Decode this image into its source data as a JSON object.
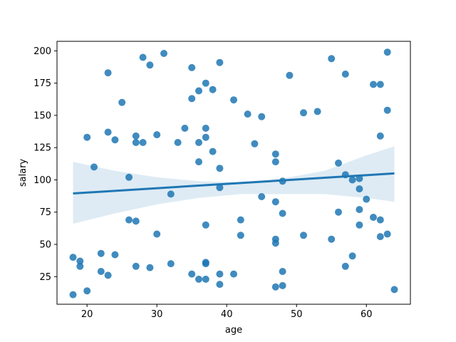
{
  "chart_data": {
    "type": "scatter",
    "xlabel": "age",
    "ylabel": "salary",
    "xlim": [
      15.7,
      66.3
    ],
    "ylim": [
      3.6,
      207.4
    ],
    "x_ticks": [
      20,
      30,
      40,
      50,
      60
    ],
    "y_ticks": [
      25,
      50,
      75,
      100,
      125,
      150,
      175,
      200
    ],
    "grid": false,
    "colors": {
      "points": "#1f77b4",
      "line": "#1f77b4",
      "band": "#1f77b4"
    },
    "regression": {
      "x": [
        18,
        64
      ],
      "y": [
        89.5,
        105
      ],
      "ci_upper": [
        {
          "x": 18,
          "y": 114
        },
        {
          "x": 24,
          "y": 107
        },
        {
          "x": 30,
          "y": 102
        },
        {
          "x": 36,
          "y": 99
        },
        {
          "x": 42,
          "y": 98
        },
        {
          "x": 48,
          "y": 101
        },
        {
          "x": 54,
          "y": 107
        },
        {
          "x": 60,
          "y": 119
        },
        {
          "x": 64,
          "y": 126
        }
      ],
      "ci_lower": [
        {
          "x": 64,
          "y": 83
        },
        {
          "x": 60,
          "y": 86
        },
        {
          "x": 54,
          "y": 89
        },
        {
          "x": 48,
          "y": 89
        },
        {
          "x": 42,
          "y": 89
        },
        {
          "x": 36,
          "y": 86
        },
        {
          "x": 30,
          "y": 81
        },
        {
          "x": 24,
          "y": 74
        },
        {
          "x": 18,
          "y": 66
        }
      ]
    },
    "points": [
      {
        "x": 18,
        "y": 40
      },
      {
        "x": 18,
        "y": 11
      },
      {
        "x": 19,
        "y": 37
      },
      {
        "x": 19,
        "y": 33
      },
      {
        "x": 20,
        "y": 133
      },
      {
        "x": 20,
        "y": 14
      },
      {
        "x": 21,
        "y": 110
      },
      {
        "x": 22,
        "y": 43
      },
      {
        "x": 22,
        "y": 29
      },
      {
        "x": 23,
        "y": 183
      },
      {
        "x": 23,
        "y": 137
      },
      {
        "x": 23,
        "y": 26
      },
      {
        "x": 24,
        "y": 131
      },
      {
        "x": 24,
        "y": 42
      },
      {
        "x": 25,
        "y": 160
      },
      {
        "x": 26,
        "y": 102
      },
      {
        "x": 26,
        "y": 69
      },
      {
        "x": 27,
        "y": 134
      },
      {
        "x": 27,
        "y": 129
      },
      {
        "x": 27,
        "y": 68
      },
      {
        "x": 27,
        "y": 33
      },
      {
        "x": 28,
        "y": 195
      },
      {
        "x": 28,
        "y": 129
      },
      {
        "x": 29,
        "y": 189
      },
      {
        "x": 29,
        "y": 32
      },
      {
        "x": 30,
        "y": 135
      },
      {
        "x": 30,
        "y": 58
      },
      {
        "x": 31,
        "y": 198
      },
      {
        "x": 32,
        "y": 89
      },
      {
        "x": 32,
        "y": 35
      },
      {
        "x": 33,
        "y": 129
      },
      {
        "x": 34,
        "y": 140
      },
      {
        "x": 35,
        "y": 187
      },
      {
        "x": 35,
        "y": 163
      },
      {
        "x": 35,
        "y": 27
      },
      {
        "x": 36,
        "y": 169
      },
      {
        "x": 36,
        "y": 129
      },
      {
        "x": 36,
        "y": 114
      },
      {
        "x": 36,
        "y": 23
      },
      {
        "x": 37,
        "y": 175
      },
      {
        "x": 37,
        "y": 140
      },
      {
        "x": 37,
        "y": 133
      },
      {
        "x": 37,
        "y": 65
      },
      {
        "x": 37,
        "y": 36
      },
      {
        "x": 37,
        "y": 35
      },
      {
        "x": 37,
        "y": 23
      },
      {
        "x": 38,
        "y": 170
      },
      {
        "x": 38,
        "y": 122
      },
      {
        "x": 39,
        "y": 191
      },
      {
        "x": 39,
        "y": 109
      },
      {
        "x": 39,
        "y": 94
      },
      {
        "x": 39,
        "y": 27
      },
      {
        "x": 39,
        "y": 19
      },
      {
        "x": 41,
        "y": 162
      },
      {
        "x": 41,
        "y": 27
      },
      {
        "x": 42,
        "y": 69
      },
      {
        "x": 42,
        "y": 57
      },
      {
        "x": 43,
        "y": 151
      },
      {
        "x": 44,
        "y": 128
      },
      {
        "x": 45,
        "y": 149
      },
      {
        "x": 45,
        "y": 87
      },
      {
        "x": 47,
        "y": 120
      },
      {
        "x": 47,
        "y": 114
      },
      {
        "x": 47,
        "y": 83
      },
      {
        "x": 47,
        "y": 54
      },
      {
        "x": 47,
        "y": 51
      },
      {
        "x": 47,
        "y": 17
      },
      {
        "x": 48,
        "y": 99
      },
      {
        "x": 48,
        "y": 74
      },
      {
        "x": 48,
        "y": 29
      },
      {
        "x": 48,
        "y": 18
      },
      {
        "x": 49,
        "y": 181
      },
      {
        "x": 51,
        "y": 152
      },
      {
        "x": 51,
        "y": 57
      },
      {
        "x": 53,
        "y": 153
      },
      {
        "x": 55,
        "y": 194
      },
      {
        "x": 55,
        "y": 54
      },
      {
        "x": 56,
        "y": 113
      },
      {
        "x": 56,
        "y": 75
      },
      {
        "x": 57,
        "y": 182
      },
      {
        "x": 57,
        "y": 104
      },
      {
        "x": 57,
        "y": 33
      },
      {
        "x": 58,
        "y": 100
      },
      {
        "x": 58,
        "y": 41
      },
      {
        "x": 59,
        "y": 101
      },
      {
        "x": 59,
        "y": 93
      },
      {
        "x": 59,
        "y": 77
      },
      {
        "x": 59,
        "y": 65
      },
      {
        "x": 60,
        "y": 85
      },
      {
        "x": 61,
        "y": 174
      },
      {
        "x": 61,
        "y": 71
      },
      {
        "x": 62,
        "y": 174
      },
      {
        "x": 62,
        "y": 134
      },
      {
        "x": 62,
        "y": 69
      },
      {
        "x": 62,
        "y": 56
      },
      {
        "x": 63,
        "y": 199
      },
      {
        "x": 63,
        "y": 154
      },
      {
        "x": 63,
        "y": 58
      },
      {
        "x": 64,
        "y": 15
      }
    ]
  }
}
